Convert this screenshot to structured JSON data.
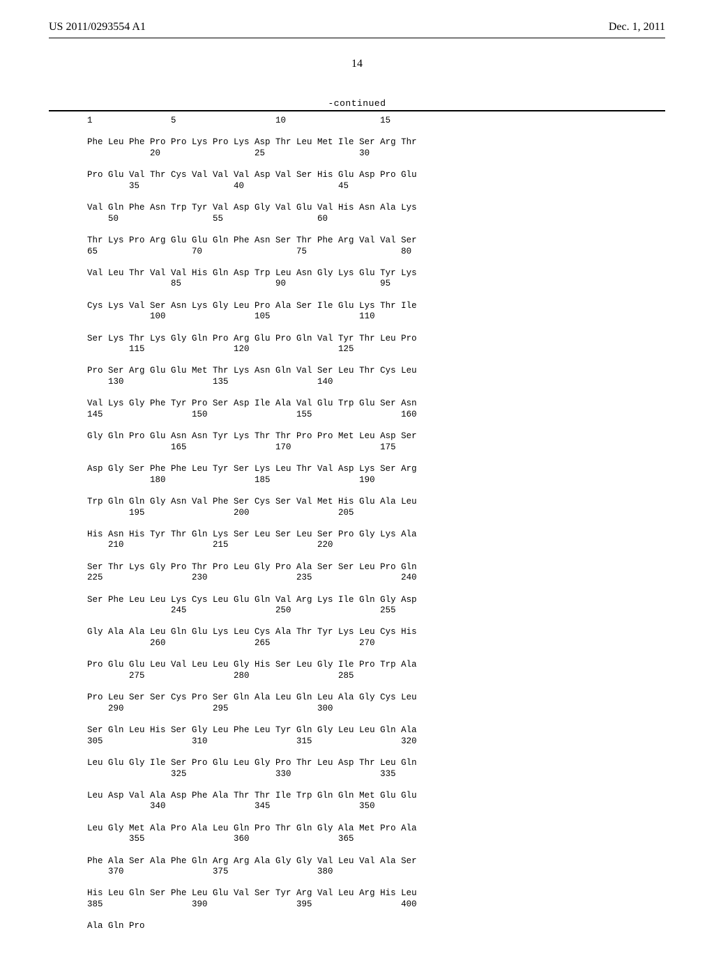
{
  "header": {
    "left": "US 2011/0293554 A1",
    "right": "Dec. 1, 2011"
  },
  "page_number": "14",
  "continued_label": "-continued",
  "sequence_rows": [
    {
      "aa": "",
      "nums": "1               5                   10                  15"
    },
    {
      "aa": "Phe Leu Phe Pro Pro Lys Pro Lys Asp Thr Leu Met Ile Ser Arg Thr",
      "nums": "            20                  25                  30"
    },
    {
      "aa": "Pro Glu Val Thr Cys Val Val Val Asp Val Ser His Glu Asp Pro Glu",
      "nums": "        35                  40                  45"
    },
    {
      "aa": "Val Gln Phe Asn Trp Tyr Val Asp Gly Val Glu Val His Asn Ala Lys",
      "nums": "    50                  55                  60"
    },
    {
      "aa": "Thr Lys Pro Arg Glu Glu Gln Phe Asn Ser Thr Phe Arg Val Val Ser",
      "nums": "65                  70                  75                  80"
    },
    {
      "aa": "Val Leu Thr Val Val His Gln Asp Trp Leu Asn Gly Lys Glu Tyr Lys",
      "nums": "                85                  90                  95"
    },
    {
      "aa": "Cys Lys Val Ser Asn Lys Gly Leu Pro Ala Ser Ile Glu Lys Thr Ile",
      "nums": "            100                 105                 110"
    },
    {
      "aa": "Ser Lys Thr Lys Gly Gln Pro Arg Glu Pro Gln Val Tyr Thr Leu Pro",
      "nums": "        115                 120                 125"
    },
    {
      "aa": "Pro Ser Arg Glu Glu Met Thr Lys Asn Gln Val Ser Leu Thr Cys Leu",
      "nums": "    130                 135                 140"
    },
    {
      "aa": "Val Lys Gly Phe Tyr Pro Ser Asp Ile Ala Val Glu Trp Glu Ser Asn",
      "nums": "145                 150                 155                 160"
    },
    {
      "aa": "Gly Gln Pro Glu Asn Asn Tyr Lys Thr Thr Pro Pro Met Leu Asp Ser",
      "nums": "                165                 170                 175"
    },
    {
      "aa": "Asp Gly Ser Phe Phe Leu Tyr Ser Lys Leu Thr Val Asp Lys Ser Arg",
      "nums": "            180                 185                 190"
    },
    {
      "aa": "Trp Gln Gln Gly Asn Val Phe Ser Cys Ser Val Met His Glu Ala Leu",
      "nums": "        195                 200                 205"
    },
    {
      "aa": "His Asn His Tyr Thr Gln Lys Ser Leu Ser Leu Ser Pro Gly Lys Ala",
      "nums": "    210                 215                 220"
    },
    {
      "aa": "Ser Thr Lys Gly Pro Thr Pro Leu Gly Pro Ala Ser Ser Leu Pro Gln",
      "nums": "225                 230                 235                 240"
    },
    {
      "aa": "Ser Phe Leu Leu Lys Cys Leu Glu Gln Val Arg Lys Ile Gln Gly Asp",
      "nums": "                245                 250                 255"
    },
    {
      "aa": "Gly Ala Ala Leu Gln Glu Lys Leu Cys Ala Thr Tyr Lys Leu Cys His",
      "nums": "            260                 265                 270"
    },
    {
      "aa": "Pro Glu Glu Leu Val Leu Leu Gly His Ser Leu Gly Ile Pro Trp Ala",
      "nums": "        275                 280                 285"
    },
    {
      "aa": "Pro Leu Ser Ser Cys Pro Ser Gln Ala Leu Gln Leu Ala Gly Cys Leu",
      "nums": "    290                 295                 300"
    },
    {
      "aa": "Ser Gln Leu His Ser Gly Leu Phe Leu Tyr Gln Gly Leu Leu Gln Ala",
      "nums": "305                 310                 315                 320"
    },
    {
      "aa": "Leu Glu Gly Ile Ser Pro Glu Leu Gly Pro Thr Leu Asp Thr Leu Gln",
      "nums": "                325                 330                 335"
    },
    {
      "aa": "Leu Asp Val Ala Asp Phe Ala Thr Thr Ile Trp Gln Gln Met Glu Glu",
      "nums": "            340                 345                 350"
    },
    {
      "aa": "Leu Gly Met Ala Pro Ala Leu Gln Pro Thr Gln Gly Ala Met Pro Ala",
      "nums": "        355                 360                 365"
    },
    {
      "aa": "Phe Ala Ser Ala Phe Gln Arg Arg Ala Gly Gly Val Leu Val Ala Ser",
      "nums": "    370                 375                 380"
    },
    {
      "aa": "His Leu Gln Ser Phe Leu Glu Val Ser Tyr Arg Val Leu Arg His Leu",
      "nums": "385                 390                 395                 400"
    },
    {
      "aa": "Ala Gln Pro",
      "nums": ""
    }
  ]
}
